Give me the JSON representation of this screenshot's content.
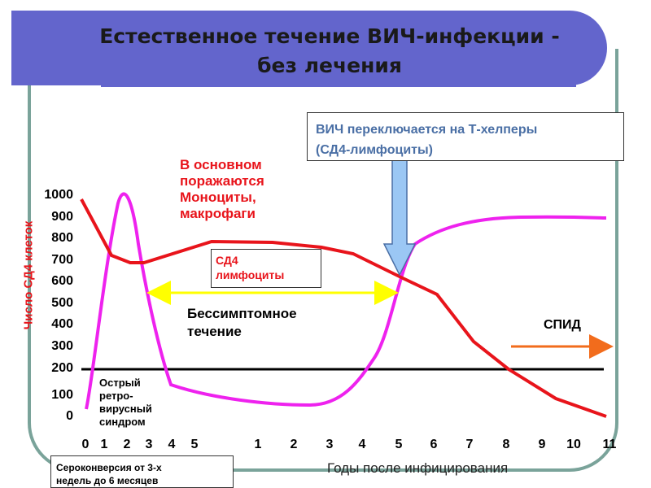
{
  "title": {
    "line1": "Естественное течение ВИЧ-инфекции  -",
    "line2": "без лечения"
  },
  "colors": {
    "cd4": "#e8141b",
    "virus": "#ee22ee",
    "threshold": "#000000",
    "asymptomatic_arrow": "#ffff00",
    "aids_arrow": "#f26c1c",
    "switch_arrow": "#9bc7f4",
    "title_bg": "#6365cc",
    "frame": "#7aa39a"
  },
  "chart_data": {
    "type": "line",
    "ylabel": "Число   СД4   клеток",
    "xlabel": "Годы после инфицирования",
    "yticks": [
      "1000",
      "900",
      "800",
      "700",
      "600",
      "500",
      "400",
      "300",
      "200",
      "100",
      "0"
    ],
    "xticks_weeks": [
      "0",
      "1",
      "2",
      "3",
      "4",
      "5"
    ],
    "xticks_years": [
      "1",
      "2",
      "3",
      "4",
      "5",
      "6",
      "7",
      "8",
      "9",
      "10",
      "11"
    ],
    "threshold": 200,
    "series": [
      {
        "name": "СД4 лимфоциты",
        "color": "#e8141b",
        "points": [
          [
            0,
            990
          ],
          [
            1,
            700
          ],
          [
            1.6,
            670
          ],
          [
            2.2,
            670
          ],
          [
            5,
            780
          ],
          [
            2.4,
            780
          ],
          [
            3.2,
            770
          ],
          [
            4.2,
            720
          ],
          [
            5,
            600
          ],
          [
            6,
            530
          ],
          [
            7,
            310
          ],
          [
            8,
            190
          ],
          [
            9,
            60
          ],
          [
            10,
            20
          ],
          [
            11,
            -20
          ]
        ]
      }
    ]
  },
  "annotations": {
    "mono": [
      "В основном",
      "поражаются",
      "Моноциты,",
      "макрофаги"
    ],
    "switch": [
      "ВИЧ переключается на Т-хелперы",
      "(СД4-лимфоциты)"
    ],
    "cd4_label": [
      "СД4",
      "лимфоциты"
    ],
    "asymptomatic": [
      "Бессимптомное",
      "течение"
    ],
    "aids": "СПИД",
    "acute": [
      "Острый",
      "ретро-",
      "вирусный",
      "синдром"
    ],
    "seroconversion": [
      "Сероконверсия  от 3-х",
      "недель до 6 месяцев"
    ]
  }
}
